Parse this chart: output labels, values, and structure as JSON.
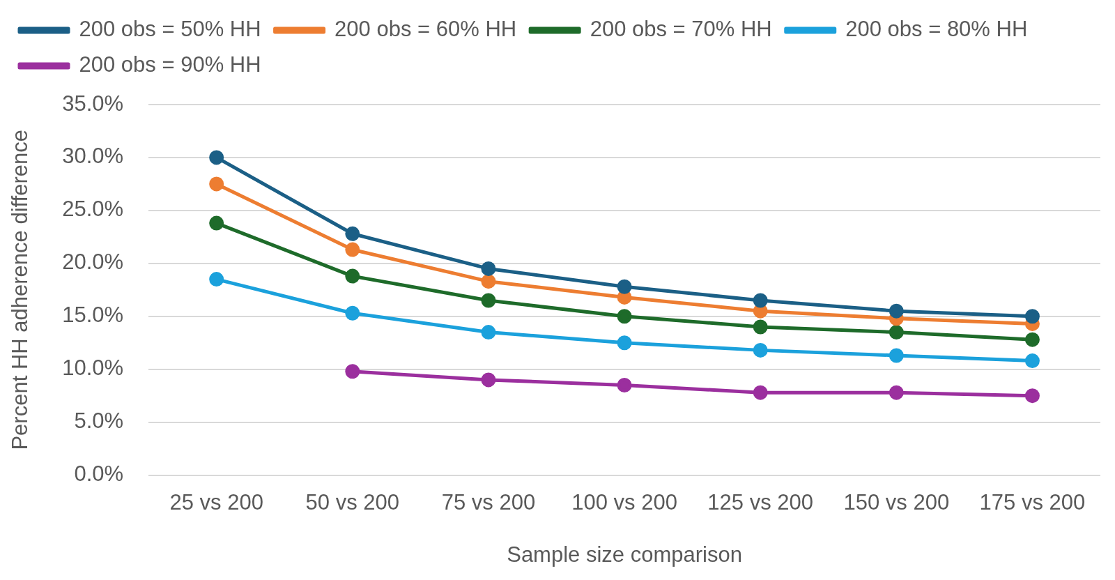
{
  "chart_data": {
    "type": "line",
    "xlabel": "Sample size comparison",
    "ylabel": "Percent HH adherence difference",
    "categories": [
      "25 vs 200",
      "50 vs 200",
      "75 vs 200",
      "100 vs 200",
      "125 vs 200",
      "150 vs 200",
      "175 vs 200"
    ],
    "series": [
      {
        "name": "200 obs = 50% HH",
        "color": "#1b5f86",
        "values": [
          30.0,
          22.8,
          19.5,
          17.8,
          16.5,
          15.5,
          15.0
        ]
      },
      {
        "name": "200 obs = 60% HH",
        "color": "#ed7d31",
        "values": [
          27.5,
          21.3,
          18.3,
          16.8,
          15.5,
          14.8,
          14.3
        ]
      },
      {
        "name": "200 obs = 70% HH",
        "color": "#1e6b2a",
        "values": [
          23.8,
          18.8,
          16.5,
          15.0,
          14.0,
          13.5,
          12.8
        ]
      },
      {
        "name": "200 obs = 80% HH",
        "color": "#1ba1dc",
        "values": [
          18.5,
          15.3,
          13.5,
          12.5,
          11.8,
          11.3,
          10.8
        ]
      },
      {
        "name": "200 obs = 90% HH",
        "color": "#9b2f9e",
        "values": [
          null,
          9.8,
          9.0,
          8.5,
          7.8,
          7.8,
          7.5
        ]
      }
    ],
    "ylim": [
      0,
      35
    ],
    "yticks": [
      {
        "value": 0,
        "label": "0.0%"
      },
      {
        "value": 5,
        "label": "5.0%"
      },
      {
        "value": 10,
        "label": "10.0%"
      },
      {
        "value": 15,
        "label": "15.0%"
      },
      {
        "value": 20,
        "label": "20.0%"
      },
      {
        "value": 25,
        "label": "25.0%"
      },
      {
        "value": 30,
        "label": "30.0%"
      },
      {
        "value": 35,
        "label": "35.0%"
      }
    ],
    "grid": "y",
    "legend": "top left",
    "marker": "circle",
    "line_style": "solid"
  }
}
